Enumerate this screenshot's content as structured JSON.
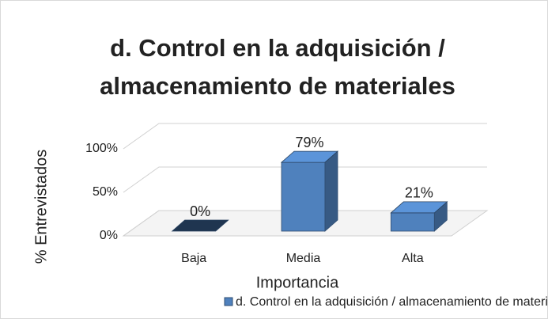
{
  "chart_data": {
    "type": "bar3d",
    "title": "d. Control en la adquisición / almacenamiento de materiales",
    "x_label": "Importancia",
    "y_label": "% Entrevistados",
    "categories": [
      "Baja",
      "Media",
      "Alta"
    ],
    "series": [
      {
        "name": "d. Control en la adquisición / almacenamiento de materiales",
        "color": "#4f81bd",
        "values": [
          0,
          79,
          21
        ],
        "value_labels": [
          "0%",
          "79%",
          "21%"
        ]
      }
    ],
    "ylim": [
      0,
      100
    ],
    "yticks": [
      {
        "value": 0,
        "label": "0%"
      },
      {
        "value": 50,
        "label": "50%"
      },
      {
        "value": 100,
        "label": "100%"
      }
    ],
    "grid": true,
    "legend": "bottom"
  }
}
